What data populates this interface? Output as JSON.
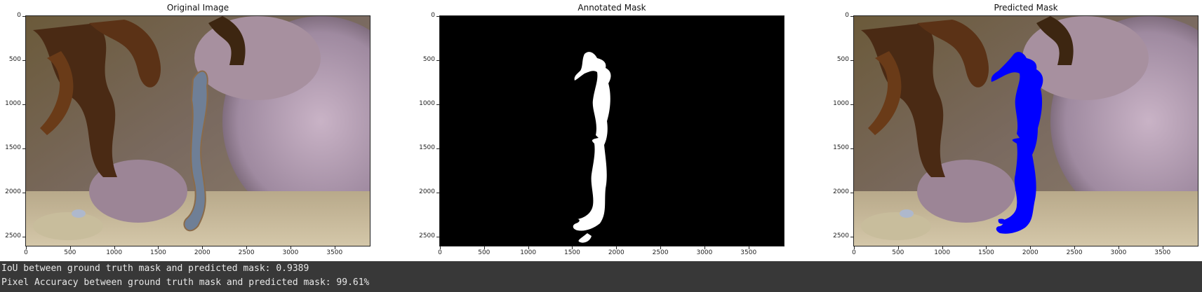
{
  "panels": [
    {
      "id": "original",
      "title": "Original Image"
    },
    {
      "id": "annotated",
      "title": "Annotated Mask"
    },
    {
      "id": "predicted",
      "title": "Predicted Mask"
    }
  ],
  "axes": {
    "x_ticks": [
      "0",
      "500",
      "1000",
      "1500",
      "2000",
      "2500",
      "3000",
      "3500"
    ],
    "y_ticks": [
      "0",
      "500",
      "1000",
      "1500",
      "2000",
      "2500"
    ],
    "x_max": 3900,
    "y_max": 2600
  },
  "colors": {
    "mask_white": "#ffffff",
    "mask_background": "#000000",
    "prediction_blue": "#0000ff",
    "output_background": "#383838"
  },
  "output": {
    "iou_line": "IoU between ground truth mask and predicted mask: 0.9389",
    "accuracy_line": "Pixel Accuracy between ground truth mask and predicted mask: 99.61%"
  }
}
